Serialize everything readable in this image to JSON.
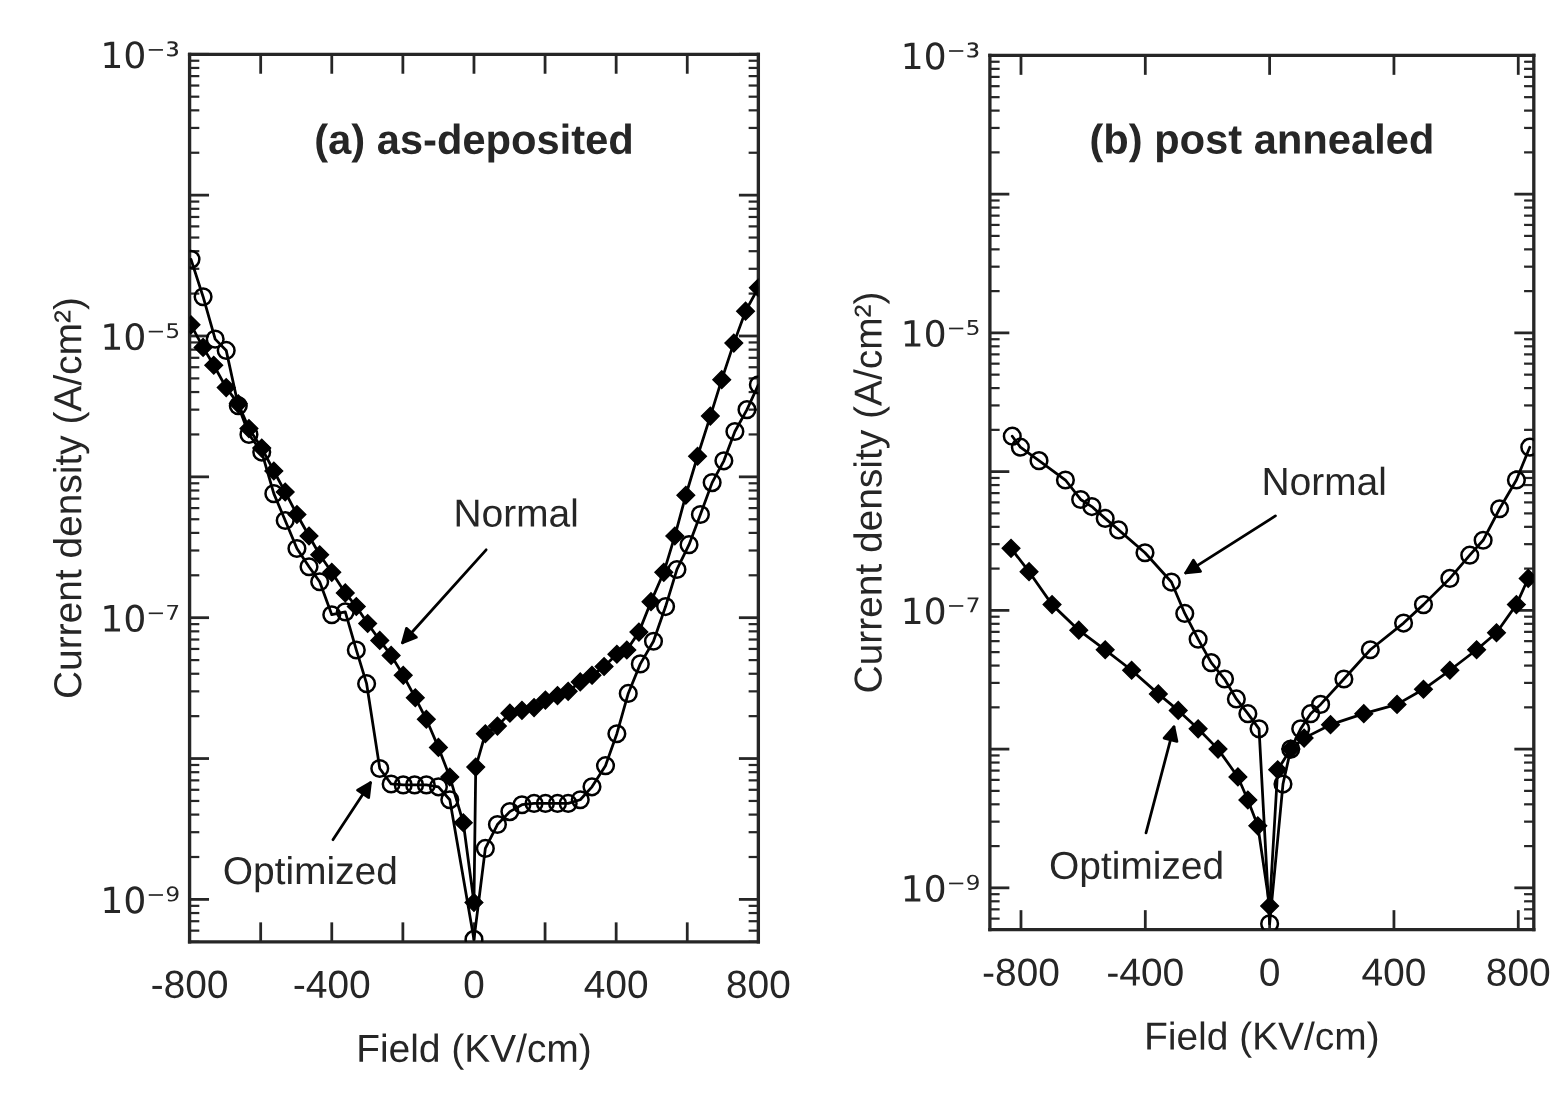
{
  "chart_data": [
    {
      "type": "line",
      "title": "(a) as-deposited",
      "xlabel": "Field (KV/cm)",
      "ylabel": "Current density (A/cm²)",
      "log": "y",
      "xlim": [
        -800,
        800
      ],
      "xticks": [
        -800,
        {
          "value": -600,
          "label": null
        },
        -400,
        {
          "value": -200,
          "label": null
        },
        0,
        {
          "value": 200,
          "label": null
        },
        400,
        {
          "value": 600,
          "label": null
        },
        800
      ],
      "ylim": [
        5e-10,
        0.001
      ],
      "yticks": [
        {
          "value": 1e-09,
          "label": "10⁻⁹"
        },
        {
          "value": 1e-08,
          "label": null
        },
        {
          "value": 1e-07,
          "label": "10⁻⁷"
        },
        {
          "value": 1e-06,
          "label": null
        },
        {
          "value": 1e-05,
          "label": "10⁻⁵"
        },
        {
          "value": 0.0001,
          "label": null
        },
        {
          "value": 0.001,
          "label": "10⁻³"
        }
      ],
      "series": [
        {
          "color": "#000000",
          "marker": "circle",
          "x": [
            -796,
            -762,
            -728,
            -697,
            -663,
            -633,
            -597,
            -563,
            -531,
            -498,
            -464,
            -434,
            -400,
            -362,
            -331,
            -302,
            -265,
            -233,
            -199,
            -167,
            -134,
            -100,
            -68,
            0,
            32,
            66,
            101,
            135,
            169,
            201,
            235,
            265,
            299,
            332,
            370,
            402,
            434,
            468,
            505,
            539,
            571,
            605,
            637,
            670,
            703,
            734,
            768,
            800
          ],
          "values": [
            3.5e-05,
            1.9e-05,
            9.5e-06,
            7.9e-06,
            3.2e-06,
            2e-06,
            1.5e-06,
            7.6e-07,
            4.9e-07,
            3.1e-07,
            2.3e-07,
            1.8e-07,
            1.05e-07,
            1.1e-07,
            5.9e-08,
            3.4e-08,
            8.5e-09,
            6.6e-09,
            6.5e-09,
            6.5e-09,
            6.5e-09,
            6.3e-09,
            5.1e-09,
            5.2e-10,
            2.3e-09,
            3.4e-09,
            4.2e-09,
            4.7e-09,
            4.8e-09,
            4.8e-09,
            4.8e-09,
            4.8e-09,
            5.1e-09,
            6.3e-09,
            8.9e-09,
            1.5e-08,
            2.9e-08,
            4.7e-08,
            6.8e-08,
            1.2e-07,
            2.2e-07,
            3.3e-07,
            5.4e-07,
            9.1e-07,
            1.3e-06,
            2.1e-06,
            3e-06,
            4.5e-06
          ]
        },
        {
          "color": "#000000",
          "marker": "diamond",
          "x": [
            -796,
            -762,
            -732,
            -697,
            -663,
            -633,
            -597,
            -563,
            -531,
            -498,
            -464,
            -434,
            -400,
            -362,
            -331,
            -299,
            -265,
            -233,
            -199,
            -165,
            -134,
            -100,
            -68,
            -30,
            0,
            5,
            32,
            66,
            101,
            135,
            169,
            201,
            235,
            265,
            299,
            332,
            366,
            402,
            430,
            464,
            498,
            534,
            565,
            596,
            629,
            665,
            697,
            731,
            764,
            800
          ],
          "values": [
            1.2e-05,
            8.3e-06,
            6.2e-06,
            4.3e-06,
            3.3e-06,
            2.2e-06,
            1.6e-06,
            1.1e-06,
            7.8e-07,
            5.4e-07,
            3.8e-07,
            2.8e-07,
            2.1e-07,
            1.5e-07,
            1.2e-07,
            9.1e-08,
            6.9e-08,
            5.4e-08,
            3.9e-08,
            2.7e-08,
            1.9e-08,
            1.2e-08,
            7.4e-09,
            3.5e-09,
            9.5e-10,
            8.7e-09,
            1.5e-08,
            1.7e-08,
            2.1e-08,
            2.2e-08,
            2.3e-08,
            2.6e-08,
            2.8e-08,
            3e-08,
            3.5e-08,
            3.9e-08,
            4.5e-08,
            5.5e-08,
            5.9e-08,
            7.9e-08,
            1.3e-07,
            2.1e-07,
            3.8e-07,
            7.4e-07,
            1.4e-06,
            2.7e-06,
            4.9e-06,
            8.9e-06,
            1.5e-05,
            2.2e-05
          ]
        }
      ],
      "annotations": [
        {
          "text": "Normal",
          "x": -233,
          "y": 5.4e-08
        },
        {
          "text": "Optimized",
          "x": -265,
          "y": 8.5e-09
        }
      ]
    },
    {
      "type": "line",
      "title": "(b) post annealed",
      "xlabel": "Field (KV/cm)",
      "ylabel": "Current density (A/cm²)",
      "log": "y",
      "xlim": [
        -900,
        850
      ],
      "xticks": [
        -800,
        -400,
        0,
        400,
        800
      ],
      "ylim": [
        5e-10,
        0.001
      ],
      "yticks": [
        {
          "value": 1e-09,
          "label": "10⁻⁹"
        },
        {
          "value": 1e-08,
          "label": null
        },
        {
          "value": 1e-07,
          "label": "10⁻⁷"
        },
        {
          "value": 1e-06,
          "label": null
        },
        {
          "value": 1e-05,
          "label": "10⁻⁵"
        },
        {
          "value": 0.0001,
          "label": null
        },
        {
          "value": 0.001,
          "label": "10⁻³"
        }
      ],
      "series": [
        {
          "color": "#000000",
          "marker": "circle",
          "x": [
            -828,
            -802,
            -742,
            -657,
            -608,
            -572,
            -529,
            -486,
            -401,
            -316,
            -273,
            -230,
            -188,
            -145,
            -107,
            -70,
            -34,
            0,
            43,
            68,
            100,
            132,
            164,
            239,
            324,
            431,
            495,
            580,
            644,
            687,
            740,
            794,
            837
          ],
          "values": [
            1.8e-06,
            1.5e-06,
            1.2e-06,
            8.7e-07,
            6.3e-07,
            5.6e-07,
            4.6e-07,
            3.8e-07,
            2.6e-07,
            1.6e-07,
            9.5e-08,
            6.2e-08,
            4.2e-08,
            3.2e-08,
            2.3e-08,
            1.8e-08,
            1.4e-08,
            5.5e-10,
            5.6e-09,
            1e-08,
            1.4e-08,
            1.8e-08,
            2.1e-08,
            3.2e-08,
            5.2e-08,
            8.1e-08,
            1.1e-07,
            1.7e-07,
            2.5e-07,
            3.2e-07,
            5.4e-07,
            8.7e-07,
            1.5e-06
          ]
        },
        {
          "color": "#000000",
          "marker": "diamond",
          "x": [
            -832,
            -774,
            -700,
            -614,
            -529,
            -444,
            -358,
            -294,
            -230,
            -166,
            -102,
            -70,
            -38,
            0,
            26,
            68,
            111,
            196,
            303,
            410,
            495,
            580,
            666,
            730,
            794,
            832
          ],
          "values": [
            2.8e-07,
            1.9e-07,
            1.1e-07,
            7.2e-08,
            5.2e-08,
            3.7e-08,
            2.5e-08,
            1.9e-08,
            1.4e-08,
            1e-08,
            6.3e-09,
            4.3e-09,
            2.8e-09,
            7.4e-10,
            7.1e-09,
            1e-08,
            1.2e-08,
            1.5e-08,
            1.8e-08,
            2.1e-08,
            2.7e-08,
            3.7e-08,
            5.2e-08,
            6.9e-08,
            1.1e-07,
            1.7e-07
          ]
        }
      ],
      "annotations": [
        {
          "text": "Normal",
          "x": -316,
          "y": 1.6e-07
        },
        {
          "text": "Optimized",
          "x": -294,
          "y": 1.9e-08
        }
      ]
    }
  ]
}
